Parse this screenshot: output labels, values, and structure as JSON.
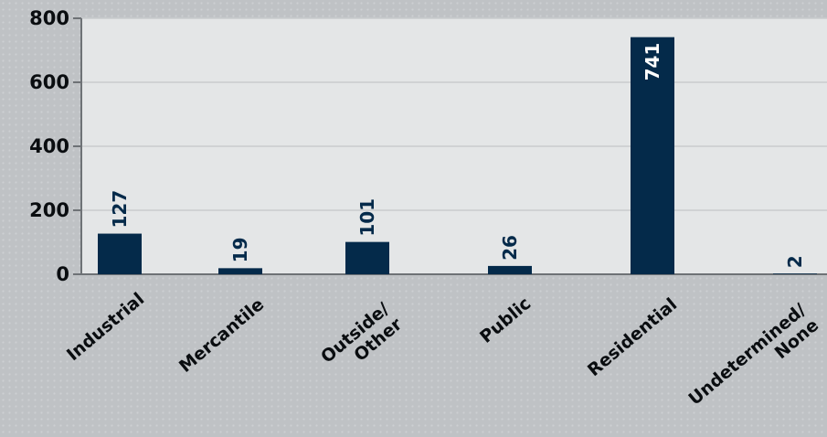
{
  "chart_data": {
    "type": "bar",
    "categories": [
      "Industrial",
      "Mercantile",
      "Outside/\nOther",
      "Public",
      "Residential",
      "Undetermined/\nNone"
    ],
    "values": [
      127,
      19,
      101,
      26,
      741,
      2
    ],
    "data_labels": [
      "127",
      "19",
      "101",
      "26",
      "741",
      "2"
    ],
    "y_ticks": [
      "0",
      "200",
      "400",
      "600",
      "800"
    ],
    "ylim": [
      0,
      800
    ],
    "grid": true,
    "bar_color": "#042a4a",
    "label_color_outside": "#042a4a",
    "label_color_inside": "#ffffff",
    "plot_bg": "#e4e6e7",
    "grid_color": "#c9ccce"
  }
}
